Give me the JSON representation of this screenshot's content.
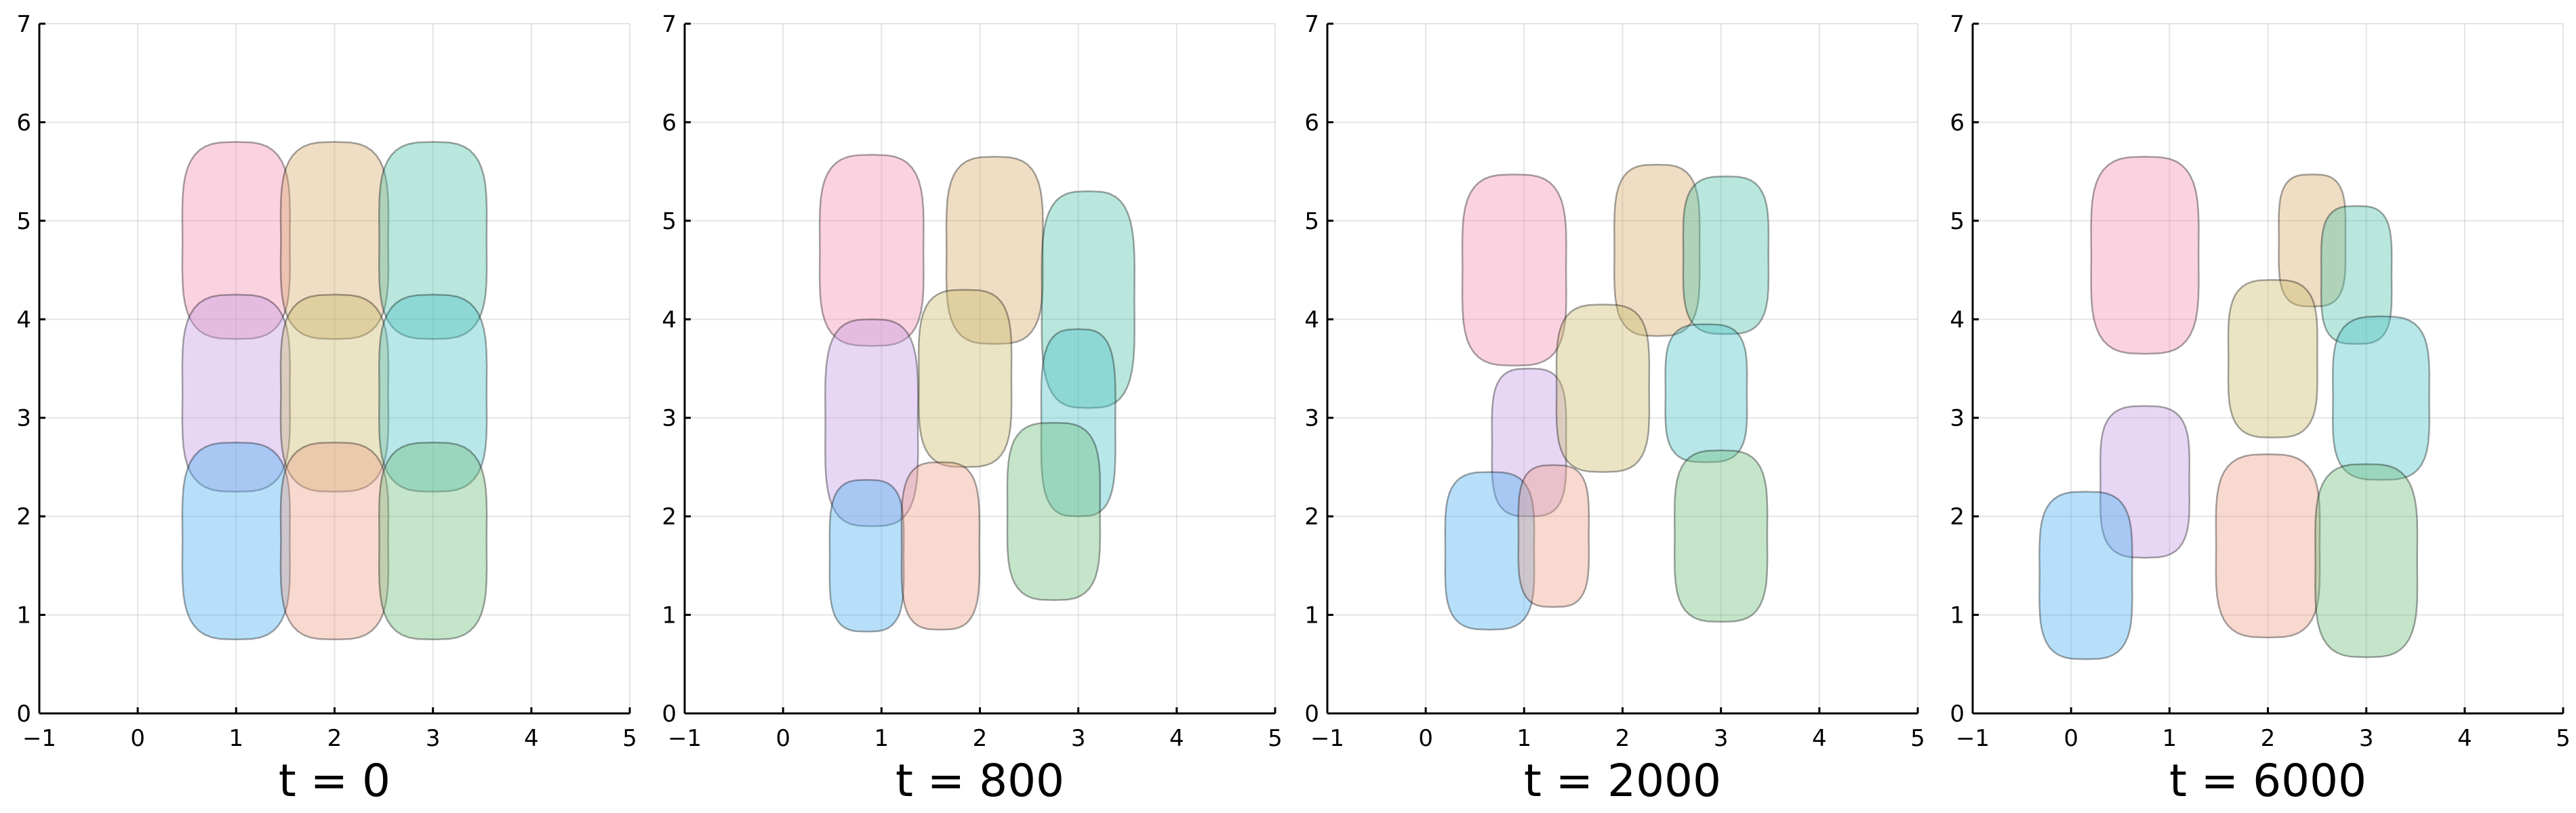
{
  "chart_data": [
    {
      "type": "scatter",
      "title": "t = 0",
      "xlim": [
        -1,
        5
      ],
      "ylim": [
        0,
        7
      ],
      "xticks": [
        -1,
        0,
        1,
        2,
        3,
        4,
        5
      ],
      "yticks": [
        0,
        1,
        2,
        3,
        4,
        5,
        6,
        7
      ],
      "grid": true,
      "cells": [
        {
          "color": "#f48fb1",
          "x": 1.0,
          "y": 4.8,
          "rx": 0.58,
          "ry": 1.0
        },
        {
          "color": "#d7a96b",
          "x": 2.0,
          "y": 4.8,
          "rx": 0.58,
          "ry": 1.0
        },
        {
          "color": "#4fc3a9",
          "x": 3.0,
          "y": 4.8,
          "rx": 0.58,
          "ry": 1.0
        },
        {
          "color": "#c39be6",
          "x": 1.0,
          "y": 3.25,
          "rx": 0.58,
          "ry": 1.0
        },
        {
          "color": "#cbbb6e",
          "x": 2.0,
          "y": 3.25,
          "rx": 0.58,
          "ry": 1.0
        },
        {
          "color": "#4cc3c9",
          "x": 3.0,
          "y": 3.25,
          "rx": 0.58,
          "ry": 1.0
        },
        {
          "color": "#4aafef",
          "x": 1.0,
          "y": 1.75,
          "rx": 0.58,
          "ry": 1.0
        },
        {
          "color": "#eda08a",
          "x": 2.0,
          "y": 1.75,
          "rx": 0.58,
          "ry": 1.0
        },
        {
          "color": "#6fbf7e",
          "x": 3.0,
          "y": 1.75,
          "rx": 0.58,
          "ry": 1.0
        }
      ]
    },
    {
      "type": "scatter",
      "title": "t = 800",
      "xlim": [
        -1,
        5
      ],
      "ylim": [
        0,
        7
      ],
      "xticks": [
        -1,
        0,
        1,
        2,
        3,
        4,
        5
      ],
      "yticks": [
        0,
        1,
        2,
        3,
        4,
        5,
        6,
        7
      ],
      "grid": true,
      "cells": [
        {
          "color": "#f48fb1",
          "x": 0.9,
          "y": 4.7,
          "rx": 0.56,
          "ry": 0.97
        },
        {
          "color": "#d7a96b",
          "x": 2.15,
          "y": 4.7,
          "rx": 0.52,
          "ry": 0.95
        },
        {
          "color": "#4fc3a9",
          "x": 3.1,
          "y": 4.2,
          "rx": 0.5,
          "ry": 1.1
        },
        {
          "color": "#c39be6",
          "x": 0.9,
          "y": 2.95,
          "rx": 0.5,
          "ry": 1.05
        },
        {
          "color": "#cbbb6e",
          "x": 1.85,
          "y": 3.4,
          "rx": 0.5,
          "ry": 0.9
        },
        {
          "color": "#4cc3c9",
          "x": 3.0,
          "y": 2.95,
          "rx": 0.4,
          "ry": 0.95
        },
        {
          "color": "#4aafef",
          "x": 0.85,
          "y": 1.6,
          "rx": 0.4,
          "ry": 0.77
        },
        {
          "color": "#eda08a",
          "x": 1.6,
          "y": 1.7,
          "rx": 0.42,
          "ry": 0.85
        },
        {
          "color": "#6fbf7e",
          "x": 2.75,
          "y": 2.05,
          "rx": 0.5,
          "ry": 0.9
        }
      ]
    },
    {
      "type": "scatter",
      "title": "t = 2000",
      "xlim": [
        -1,
        5
      ],
      "ylim": [
        0,
        7
      ],
      "xticks": [
        -1,
        0,
        1,
        2,
        3,
        4,
        5
      ],
      "yticks": [
        0,
        1,
        2,
        3,
        4,
        5,
        6,
        7
      ],
      "grid": true,
      "cells": [
        {
          "color": "#f48fb1",
          "x": 0.9,
          "y": 4.5,
          "rx": 0.56,
          "ry": 0.97
        },
        {
          "color": "#d7a96b",
          "x": 2.35,
          "y": 4.7,
          "rx": 0.46,
          "ry": 0.87
        },
        {
          "color": "#4fc3a9",
          "x": 3.05,
          "y": 4.65,
          "rx": 0.46,
          "ry": 0.8
        },
        {
          "color": "#c39be6",
          "x": 1.05,
          "y": 2.75,
          "rx": 0.4,
          "ry": 0.75
        },
        {
          "color": "#cbbb6e",
          "x": 1.8,
          "y": 3.3,
          "rx": 0.5,
          "ry": 0.85
        },
        {
          "color": "#4cc3c9",
          "x": 2.85,
          "y": 3.25,
          "rx": 0.44,
          "ry": 0.7
        },
        {
          "color": "#4aafef",
          "x": 0.65,
          "y": 1.65,
          "rx": 0.48,
          "ry": 0.8
        },
        {
          "color": "#eda08a",
          "x": 1.3,
          "y": 1.8,
          "rx": 0.38,
          "ry": 0.72
        },
        {
          "color": "#6fbf7e",
          "x": 3.0,
          "y": 1.8,
          "rx": 0.5,
          "ry": 0.87
        }
      ]
    },
    {
      "type": "scatter",
      "title": "t = 6000",
      "xlim": [
        -1,
        5
      ],
      "ylim": [
        0,
        7
      ],
      "xticks": [
        -1,
        0,
        1,
        2,
        3,
        4,
        5
      ],
      "yticks": [
        0,
        1,
        2,
        3,
        4,
        5,
        6,
        7
      ],
      "grid": true,
      "cells": [
        {
          "color": "#f48fb1",
          "x": 0.75,
          "y": 4.65,
          "rx": 0.58,
          "ry": 1.0
        },
        {
          "color": "#d7a96b",
          "x": 2.45,
          "y": 4.8,
          "rx": 0.36,
          "ry": 0.67
        },
        {
          "color": "#4fc3a9",
          "x": 2.9,
          "y": 4.45,
          "rx": 0.38,
          "ry": 0.7
        },
        {
          "color": "#c39be6",
          "x": 0.75,
          "y": 2.35,
          "rx": 0.48,
          "ry": 0.77
        },
        {
          "color": "#cbbb6e",
          "x": 2.05,
          "y": 3.6,
          "rx": 0.48,
          "ry": 0.8
        },
        {
          "color": "#4cc3c9",
          "x": 3.15,
          "y": 3.2,
          "rx": 0.52,
          "ry": 0.83
        },
        {
          "color": "#4aafef",
          "x": 0.15,
          "y": 1.4,
          "rx": 0.5,
          "ry": 0.85
        },
        {
          "color": "#eda08a",
          "x": 2.0,
          "y": 1.7,
          "rx": 0.56,
          "ry": 0.93
        },
        {
          "color": "#6fbf7e",
          "x": 3.0,
          "y": 1.55,
          "rx": 0.55,
          "ry": 0.98
        }
      ]
    }
  ]
}
